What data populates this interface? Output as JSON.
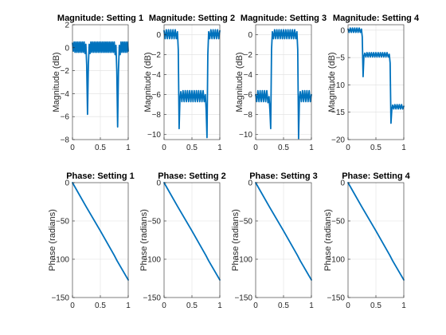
{
  "figure": {
    "background": "#ffffff",
    "line_color": "#0072bd"
  },
  "chart_data": [
    {
      "type": "line",
      "title": "Magnitude: Setting 1",
      "xlabel": "",
      "ylabel": "Magnitude (dB)",
      "xlim": [
        0,
        1
      ],
      "ylim": [
        -8,
        2
      ],
      "xticks": [
        0,
        0.5,
        1
      ],
      "yticks": [
        2,
        0,
        -2,
        -4,
        -6,
        -8
      ],
      "grid": true,
      "series": [
        {
          "x": [
            0,
            0.015,
            0.03,
            0.045,
            0.06,
            0.075,
            0.09,
            0.105,
            0.12,
            0.135,
            0.15,
            0.165,
            0.18,
            0.195,
            0.21,
            0.225,
            0.24,
            0.255,
            0.27,
            0.285,
            0.3,
            0.315,
            0.33,
            0.345,
            0.36,
            0.375,
            0.39,
            0.405,
            0.42,
            0.435,
            0.45,
            0.465,
            0.48,
            0.495,
            0.51,
            0.525,
            0.54,
            0.555,
            0.57,
            0.585,
            0.6,
            0.615,
            0.63,
            0.645,
            0.66,
            0.675,
            0.69,
            0.705,
            0.72,
            0.735,
            0.75,
            0.765,
            0.78,
            0.795,
            0.81,
            0.825,
            0.84,
            0.855,
            0.87,
            0.885,
            0.9,
            0.915,
            0.93,
            0.945,
            0.96,
            0.975,
            0.99,
            1.0
          ],
          "y": [
            0.4,
            -0.3,
            0.5,
            -0.4,
            0.5,
            -0.4,
            0.5,
            -0.4,
            0.5,
            -0.4,
            0.5,
            -0.4,
            0.5,
            -0.4,
            0.5,
            -0.5,
            0.3,
            -1.5,
            -5.8,
            -1.5,
            0.3,
            -0.5,
            0.5,
            -0.4,
            0.5,
            -0.4,
            0.5,
            -0.4,
            0.5,
            -0.4,
            0.5,
            -0.4,
            0.5,
            -0.4,
            0.5,
            -0.4,
            0.5,
            -0.4,
            0.5,
            -0.4,
            0.5,
            -0.4,
            0.5,
            -0.4,
            0.5,
            -0.4,
            0.5,
            -0.4,
            0.5,
            -0.4,
            0.5,
            -0.6,
            0.2,
            -2.0,
            -6.9,
            -2.0,
            0.2,
            -0.6,
            0.5,
            -0.4,
            0.5,
            -0.4,
            0.5,
            -0.4,
            0.5,
            -0.4,
            0.5,
            -0.3
          ]
        }
      ]
    },
    {
      "type": "line",
      "title": "Magnitude: Setting 2",
      "xlabel": "",
      "ylabel": "Magnitude (dB)",
      "xlim": [
        0,
        1
      ],
      "ylim": [
        -10.5,
        1
      ],
      "xticks": [
        0,
        0.5,
        1
      ],
      "yticks": [
        0,
        -2,
        -4,
        -6,
        -8,
        -10
      ],
      "grid": true,
      "series": [
        {
          "x": [
            0,
            0.02,
            0.04,
            0.06,
            0.08,
            0.1,
            0.12,
            0.14,
            0.16,
            0.18,
            0.2,
            0.22,
            0.24,
            0.255,
            0.27,
            0.285,
            0.3,
            0.32,
            0.34,
            0.36,
            0.38,
            0.4,
            0.42,
            0.44,
            0.46,
            0.48,
            0.5,
            0.52,
            0.54,
            0.56,
            0.58,
            0.6,
            0.62,
            0.64,
            0.66,
            0.68,
            0.7,
            0.72,
            0.74,
            0.755,
            0.77,
            0.785,
            0.8,
            0.82,
            0.84,
            0.86,
            0.88,
            0.9,
            0.92,
            0.94,
            0.96,
            0.98,
            1.0
          ],
          "y": [
            0.4,
            -0.4,
            0.5,
            -0.4,
            0.5,
            -0.4,
            0.5,
            -0.4,
            0.5,
            -0.4,
            0.5,
            -0.4,
            0.3,
            -1.5,
            -9.4,
            -6.4,
            -5.7,
            -6.7,
            -5.6,
            -6.7,
            -5.6,
            -6.7,
            -5.6,
            -6.7,
            -5.6,
            -6.7,
            -5.6,
            -6.7,
            -5.6,
            -6.7,
            -5.6,
            -6.7,
            -5.6,
            -6.7,
            -5.6,
            -6.7,
            -5.6,
            -6.7,
            -6.0,
            -7.5,
            -10.3,
            -2.0,
            0.3,
            -0.4,
            0.5,
            -0.4,
            0.5,
            -0.4,
            0.5,
            -0.4,
            0.5,
            -0.4,
            0.4
          ]
        }
      ]
    },
    {
      "type": "line",
      "title": "Magnitude: Setting 3",
      "xlabel": "",
      "ylabel": "Magnitude (dB)",
      "xlim": [
        0,
        1
      ],
      "ylim": [
        -10.5,
        1
      ],
      "xticks": [
        0,
        0.5,
        1
      ],
      "yticks": [
        0,
        -2,
        -4,
        -6,
        -8,
        -10
      ],
      "grid": true,
      "series": [
        {
          "x": [
            0,
            0.02,
            0.04,
            0.06,
            0.08,
            0.1,
            0.12,
            0.14,
            0.16,
            0.18,
            0.2,
            0.22,
            0.24,
            0.255,
            0.27,
            0.285,
            0.3,
            0.32,
            0.34,
            0.36,
            0.38,
            0.4,
            0.42,
            0.44,
            0.46,
            0.48,
            0.5,
            0.52,
            0.54,
            0.56,
            0.58,
            0.6,
            0.62,
            0.64,
            0.66,
            0.68,
            0.7,
            0.72,
            0.74,
            0.755,
            0.77,
            0.785,
            0.8,
            0.82,
            0.84,
            0.86,
            0.88,
            0.9,
            0.92,
            0.94,
            0.96,
            0.98,
            1.0
          ],
          "y": [
            -6.0,
            -6.7,
            -5.6,
            -6.7,
            -5.6,
            -6.7,
            -5.6,
            -6.7,
            -5.6,
            -6.7,
            -5.6,
            -6.8,
            -6.2,
            -7.5,
            -9.4,
            -1.5,
            0.3,
            -0.4,
            0.5,
            -0.4,
            0.5,
            -0.4,
            0.5,
            -0.4,
            0.5,
            -0.4,
            0.5,
            -0.4,
            0.5,
            -0.4,
            0.5,
            -0.4,
            0.5,
            -0.4,
            0.5,
            -0.4,
            0.5,
            -0.4,
            0.3,
            -1.5,
            -10.4,
            -6.4,
            -5.7,
            -6.7,
            -5.6,
            -6.7,
            -5.6,
            -6.7,
            -5.6,
            -6.7,
            -5.6,
            -6.7,
            -6.0
          ]
        }
      ]
    },
    {
      "type": "line",
      "title": "Magnitude: Setting 4",
      "xlabel": "",
      "ylabel": "Magnitude (dB)",
      "xlim": [
        0,
        1
      ],
      "ylim": [
        -20,
        1
      ],
      "xticks": [
        0,
        0.5,
        1
      ],
      "yticks": [
        0,
        -5,
        -10,
        -15,
        -20
      ],
      "grid": true,
      "series": [
        {
          "x": [
            0,
            0.02,
            0.04,
            0.06,
            0.08,
            0.1,
            0.12,
            0.14,
            0.16,
            0.18,
            0.2,
            0.22,
            0.24,
            0.255,
            0.27,
            0.285,
            0.3,
            0.32,
            0.34,
            0.36,
            0.38,
            0.4,
            0.42,
            0.44,
            0.46,
            0.48,
            0.5,
            0.52,
            0.54,
            0.56,
            0.58,
            0.6,
            0.62,
            0.64,
            0.66,
            0.68,
            0.7,
            0.72,
            0.74,
            0.755,
            0.77,
            0.785,
            0.8,
            0.82,
            0.84,
            0.86,
            0.88,
            0.9,
            0.92,
            0.94,
            0.96,
            0.98,
            1.0
          ],
          "y": [
            0.2,
            -0.4,
            0.4,
            -0.4,
            0.4,
            -0.4,
            0.4,
            -0.4,
            0.4,
            -0.4,
            0.4,
            -0.4,
            0.2,
            -1.2,
            -8.5,
            -4.7,
            -4.2,
            -4.9,
            -4.1,
            -4.9,
            -4.1,
            -4.9,
            -4.1,
            -4.9,
            -4.1,
            -4.9,
            -4.1,
            -4.9,
            -4.1,
            -4.9,
            -4.1,
            -4.9,
            -4.1,
            -4.9,
            -4.1,
            -4.9,
            -4.1,
            -4.9,
            -4.4,
            -6.0,
            -17.0,
            -14.5,
            -13.7,
            -14.4,
            -13.6,
            -14.4,
            -13.6,
            -14.4,
            -13.6,
            -14.4,
            -13.6,
            -14.4,
            -13.9
          ]
        }
      ]
    },
    {
      "type": "line",
      "title": "Phase: Setting 1",
      "xlabel": "",
      "ylabel": "Phase (radians)",
      "xlim": [
        0,
        1
      ],
      "ylim": [
        -150,
        0
      ],
      "xticks": [
        0,
        0.5,
        1
      ],
      "yticks": [
        0,
        -50,
        -100,
        -150
      ],
      "grid": true,
      "series": [
        {
          "x": [
            0,
            0.25,
            0.5,
            0.75,
            0.8,
            1.0
          ],
          "y": [
            0,
            -32,
            -63,
            -95,
            -102,
            -127
          ]
        }
      ]
    },
    {
      "type": "line",
      "title": "Phase: Setting 2",
      "xlabel": "",
      "ylabel": "Phase (radians)",
      "xlim": [
        0,
        1
      ],
      "ylim": [
        -150,
        0
      ],
      "xticks": [
        0,
        0.5,
        1
      ],
      "yticks": [
        0,
        -50,
        -100,
        -150
      ],
      "grid": true,
      "series": [
        {
          "x": [
            0,
            0.25,
            0.5,
            0.75,
            0.8,
            1.0
          ],
          "y": [
            0,
            -32,
            -63,
            -95,
            -102,
            -127
          ]
        }
      ]
    },
    {
      "type": "line",
      "title": "Phase: Setting 3",
      "xlabel": "",
      "ylabel": "Phase (radians)",
      "xlim": [
        0,
        1
      ],
      "ylim": [
        -150,
        0
      ],
      "xticks": [
        0,
        0.5,
        1
      ],
      "yticks": [
        0,
        -50,
        -100,
        -150
      ],
      "grid": true,
      "series": [
        {
          "x": [
            0,
            0.25,
            0.5,
            0.75,
            0.8,
            1.0
          ],
          "y": [
            0,
            -32,
            -63,
            -95,
            -102,
            -127
          ]
        }
      ]
    },
    {
      "type": "line",
      "title": "Phase: Setting 4",
      "xlabel": "",
      "ylabel": "Phase (radians)",
      "xlim": [
        0,
        1
      ],
      "ylim": [
        -150,
        0
      ],
      "xticks": [
        0,
        0.5,
        1
      ],
      "yticks": [
        0,
        -50,
        -100,
        -150
      ],
      "grid": true,
      "series": [
        {
          "x": [
            0,
            0.25,
            0.5,
            0.75,
            0.8,
            1.0
          ],
          "y": [
            0,
            -32,
            -63,
            -95,
            -102,
            -127
          ]
        }
      ]
    }
  ]
}
